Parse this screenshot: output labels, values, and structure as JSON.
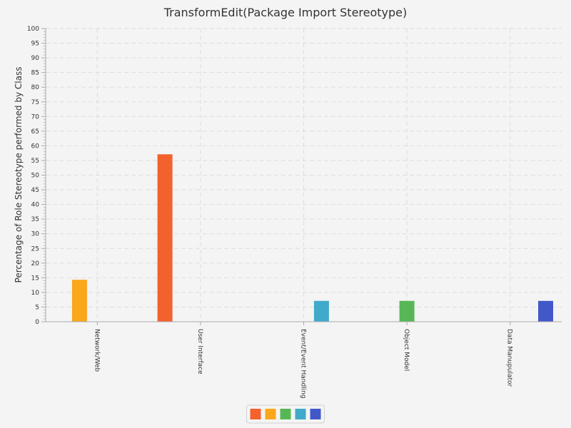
{
  "chart_data": {
    "type": "bar",
    "title": "TransformEdit(Package Import Stereotype)",
    "xlabel": "",
    "ylabel": "Percentage of Role Stereotype performed by Class",
    "ylim": [
      0,
      100
    ],
    "ytick_step": 5,
    "grid": true,
    "legend_placement": "bottom-center",
    "categories": [
      "Network/Web",
      "User Interface",
      "Event/Event Handling",
      "Object Model",
      "Data Manupulator"
    ],
    "series": [
      {
        "color": "#f3622d",
        "values": [
          0,
          57.1,
          0,
          0,
          0
        ]
      },
      {
        "color": "#fba71b",
        "values": [
          14.3,
          0,
          0,
          0,
          0
        ]
      },
      {
        "color": "#57b757",
        "values": [
          0,
          0,
          0,
          7.1,
          0
        ]
      },
      {
        "color": "#41a9c9",
        "values": [
          0,
          0,
          7.1,
          0,
          0
        ]
      },
      {
        "color": "#4258c9",
        "values": [
          0,
          0,
          0,
          0,
          7.1
        ]
      }
    ]
  }
}
